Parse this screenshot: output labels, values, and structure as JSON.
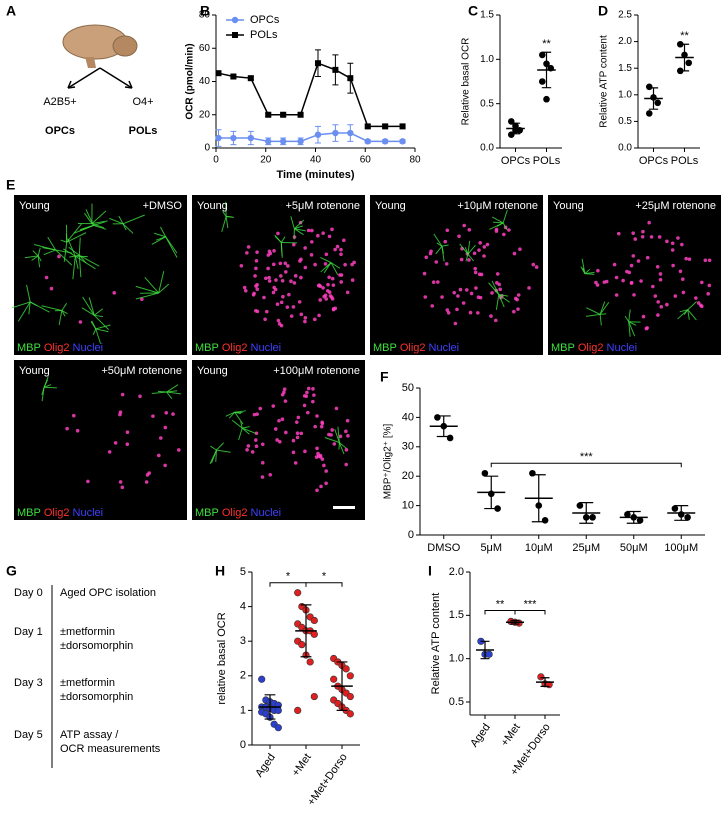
{
  "schematic": {
    "panel": "A",
    "left_marker": "A2B5+",
    "right_marker": "O4+",
    "left_cell": "OPCs",
    "right_cell": "POLs"
  },
  "micrographs": {
    "panel": "E",
    "stains": [
      "MBP",
      "Olig2",
      "Nuclei"
    ],
    "stain_colors": [
      "#3ee03e",
      "#ff3030",
      "#4040ff"
    ],
    "images": [
      {
        "left": "Young",
        "right": "+DMSO"
      },
      {
        "left": "Young",
        "right": "+5μM rotenone"
      },
      {
        "left": "Young",
        "right": "+10μM rotenone"
      },
      {
        "left": "Young",
        "right": "+25μM rotenone"
      },
      {
        "left": "Young",
        "right": "+50μM rotenone"
      },
      {
        "left": "Young",
        "right": "+100μM rotenone"
      }
    ]
  },
  "timeline": {
    "panel": "G",
    "steps": [
      {
        "day": "Day 0",
        "lines": [
          "Aged OPC isolation"
        ]
      },
      {
        "day": "Day 1",
        "lines": [
          "±metformin",
          "±dorsomorphin"
        ]
      },
      {
        "day": "Day 3",
        "lines": [
          "±metformin",
          "±dorsomorphin"
        ]
      },
      {
        "day": "Day 5",
        "lines": [
          "ATP assay /",
          "OCR measurements"
        ]
      }
    ]
  },
  "chart_data": [
    {
      "panel": "B",
      "type": "line",
      "xlabel": "Time (minutes)",
      "ylabel": "OCR (pmol/min)",
      "x": [
        1,
        7,
        14,
        21,
        27,
        34,
        41,
        48,
        54,
        61,
        68,
        75
      ],
      "series": [
        {
          "name": "OPCs",
          "color": "#6b8ff0",
          "marker": "circle",
          "values": [
            6,
            6,
            6,
            4,
            4,
            4,
            8,
            9,
            9,
            4,
            4,
            4
          ],
          "errors": [
            5,
            4,
            4,
            2,
            2,
            2,
            5,
            5,
            5,
            1,
            1,
            1
          ]
        },
        {
          "name": "POLs",
          "color": "#000000",
          "marker": "square",
          "values": [
            45,
            43,
            42,
            20,
            20,
            20,
            51,
            47,
            42,
            13,
            13,
            13
          ],
          "errors": [
            1,
            1,
            1,
            1,
            1,
            1,
            8,
            9,
            9,
            1,
            1,
            1
          ]
        }
      ],
      "xlim": [
        0,
        80
      ],
      "xticks": [
        0,
        20,
        40,
        60,
        80
      ],
      "ylim": [
        0,
        80
      ],
      "yticks": [
        0,
        20,
        40,
        60,
        80
      ],
      "legend": "upper left"
    },
    {
      "panel": "C",
      "type": "dot",
      "ylabel": "Relative basal OCR",
      "categories": [
        "OPCs",
        "POLs"
      ],
      "color": "#000000",
      "points": [
        [
          0.3,
          0.25,
          0.2,
          0.15,
          0.2
        ],
        [
          1.05,
          0.95,
          0.9,
          0.75,
          0.55
        ]
      ],
      "means": [
        0.22,
        0.88
      ],
      "sd": [
        0.06,
        0.2
      ],
      "ylim": [
        0,
        1.5
      ],
      "yticks": [
        {
          "value": 0,
          "label": "0.0"
        },
        0.5,
        {
          "value": 1,
          "label": "1.0"
        },
        1.5
      ],
      "comparisons": [
        {
          "over": "POLs",
          "label": "**"
        }
      ]
    },
    {
      "panel": "D",
      "type": "dot",
      "ylabel": "Relative ATP content",
      "categories": [
        "OPCs",
        "POLs"
      ],
      "color": "#000000",
      "points": [
        [
          1.15,
          0.95,
          0.85,
          0.65
        ],
        [
          1.95,
          1.75,
          1.6,
          1.45
        ]
      ],
      "means": [
        0.93,
        1.7
      ],
      "sd": [
        0.2,
        0.25
      ],
      "ylim": [
        0,
        2.5
      ],
      "yticks": [
        {
          "value": 0,
          "label": "0.0"
        },
        0.5,
        {
          "value": 1,
          "label": "1.0"
        },
        1.5,
        {
          "value": 2,
          "label": "2.0"
        },
        2.5
      ],
      "comparisons": [
        {
          "over": "POLs",
          "label": "**"
        }
      ]
    },
    {
      "panel": "F",
      "type": "dot",
      "ylabel": "MBP⁺/Olig2⁺ [%]",
      "categories": [
        "DMSO",
        "5μM",
        "10μM",
        "25μM",
        "50μM",
        "100μM"
      ],
      "color": "#000000",
      "points": [
        [
          40,
          37,
          33
        ],
        [
          21,
          14,
          9
        ],
        [
          21,
          10,
          5
        ],
        [
          10,
          6,
          6
        ],
        [
          7,
          6,
          5
        ],
        [
          9,
          7,
          6
        ]
      ],
      "means": [
        37,
        14.5,
        12.5,
        7.5,
        6,
        7.5
      ],
      "sd": [
        3.5,
        5.5,
        8,
        3.5,
        2,
        2.5
      ],
      "ylim": [
        0,
        50
      ],
      "yticks": [
        0,
        10,
        20,
        30,
        40,
        50
      ],
      "comparisons": [
        {
          "pair": [
            "5μM",
            "100μM"
          ],
          "label": "***"
        }
      ]
    },
    {
      "panel": "H",
      "type": "dot",
      "ylabel": "relative basal OCR",
      "categories": [
        "Aged",
        "+Met",
        "+Met+Dorso"
      ],
      "colors": [
        "#2b3fd1",
        "#e02020",
        "#e02020"
      ],
      "rotate_labels": true,
      "points": [
        [
          1.9,
          1.3,
          1.25,
          1.2,
          1.15,
          1.1,
          1.1,
          1.05,
          1.0,
          1.0,
          0.95,
          0.9,
          0.8,
          0.6,
          0.5
        ],
        [
          4.4,
          4.0,
          3.9,
          3.7,
          3.6,
          3.5,
          3.4,
          3.3,
          3.3,
          3.2,
          3.0,
          2.9,
          2.6,
          2.4,
          1.4,
          1.0
        ],
        [
          2.5,
          2.4,
          2.3,
          2.2,
          2.0,
          1.9,
          1.7,
          1.6,
          1.5,
          1.4,
          1.3,
          1.2,
          1.1,
          1.0,
          0.9
        ]
      ],
      "means": [
        1.1,
        3.3,
        1.7
      ],
      "sd": [
        0.35,
        0.75,
        0.7
      ],
      "ylim": [
        0,
        5
      ],
      "yticks": [
        0,
        1,
        2,
        3,
        4,
        5
      ],
      "comparisons": [
        {
          "pair": [
            "Aged",
            "+Met"
          ],
          "label": "*"
        },
        {
          "pair": [
            "+Met",
            "+Met+Dorso"
          ],
          "label": "*"
        }
      ]
    },
    {
      "panel": "I",
      "type": "dot",
      "ylabel": "Relative ATP content",
      "categories": [
        "Aged",
        "+Met",
        "+Met+Dorso"
      ],
      "colors": [
        "#2b3fd1",
        "#e02020",
        "#e02020"
      ],
      "rotate_labels": true,
      "points": [
        [
          1.2,
          1.05,
          1.05
        ],
        [
          1.43,
          1.42,
          1.41
        ],
        [
          0.79,
          0.71,
          0.7
        ]
      ],
      "means": [
        1.1,
        1.42,
        0.73
      ],
      "sd": [
        0.1,
        0.02,
        0.05
      ],
      "ylim": [
        0.35,
        2.0
      ],
      "yticks": [
        0.5,
        {
          "value": 1,
          "label": "1.0"
        },
        1.5,
        {
          "value": 2,
          "label": "2.0"
        }
      ],
      "comparisons": [
        {
          "pair": [
            "Aged",
            "+Met"
          ],
          "label": "**"
        },
        {
          "pair": [
            "+Met",
            "+Met+Dorso"
          ],
          "label": "***"
        }
      ]
    }
  ]
}
